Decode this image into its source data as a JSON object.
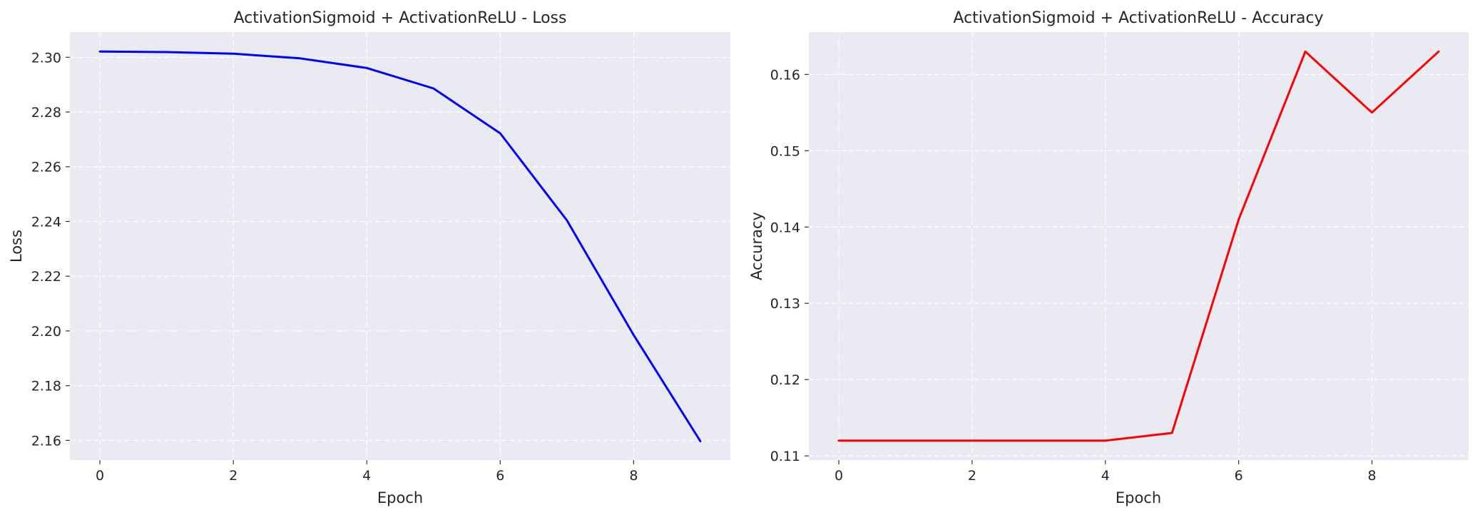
{
  "chart_data": [
    {
      "type": "line",
      "title": "ActivationSigmoid + ActivationReLU - Loss",
      "xlabel": "Epoch",
      "ylabel": "Loss",
      "x": [
        0,
        1,
        2,
        3,
        4,
        5,
        6,
        7,
        8,
        9
      ],
      "series": [
        {
          "name": "Loss",
          "color": "#0000ff",
          "values": [
            2.3021,
            2.3019,
            2.3013,
            2.2996,
            2.2961,
            2.2886,
            2.2722,
            2.2404,
            2.1985,
            2.1597
          ]
        }
      ],
      "xlim": [
        -0.45,
        9.45
      ],
      "ylim": [
        2.1528,
        2.3092
      ],
      "xticks": [
        0,
        2,
        4,
        6,
        8
      ],
      "yticks": [
        2.16,
        2.18,
        2.2,
        2.22,
        2.24,
        2.26,
        2.28,
        2.3
      ],
      "xtick_labels": [
        "0",
        "2",
        "4",
        "6",
        "8"
      ],
      "ytick_labels": [
        "2.16",
        "2.18",
        "2.20",
        "2.22",
        "2.24",
        "2.26",
        "2.28",
        "2.30"
      ],
      "grid": true
    },
    {
      "type": "line",
      "title": "ActivationSigmoid + ActivationReLU - Accuracy",
      "xlabel": "Epoch",
      "ylabel": "Accuracy",
      "x": [
        0,
        1,
        2,
        3,
        4,
        5,
        6,
        7,
        8,
        9
      ],
      "series": [
        {
          "name": "Accuracy",
          "color": "#ff0000",
          "values": [
            0.112,
            0.112,
            0.112,
            0.112,
            0.112,
            0.113,
            0.141,
            0.163,
            0.155,
            0.163
          ]
        }
      ],
      "xlim": [
        -0.45,
        9.45
      ],
      "ylim": [
        0.10945,
        0.16555
      ],
      "xticks": [
        0,
        2,
        4,
        6,
        8
      ],
      "yticks": [
        0.11,
        0.12,
        0.13,
        0.14,
        0.15,
        0.16
      ],
      "xtick_labels": [
        "0",
        "2",
        "4",
        "6",
        "8"
      ],
      "ytick_labels": [
        "0.11",
        "0.12",
        "0.13",
        "0.14",
        "0.15",
        "0.16"
      ],
      "grid": true
    }
  ]
}
